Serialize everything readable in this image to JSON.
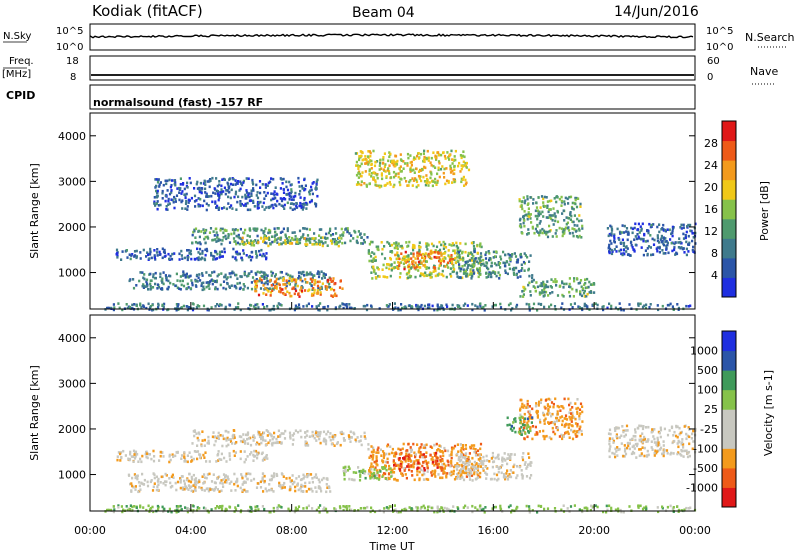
{
  "header": {
    "site": "Kodiak (fitACF)",
    "beam": "Beam 04",
    "date": "14/Jun/2016"
  },
  "summary": {
    "nsky_label": "N.Sky",
    "nsky_ticks": [
      "10^5",
      "10^0"
    ],
    "nsearch_label": "N.Search",
    "nsearch_ticks": [
      "10^5",
      "10^0"
    ],
    "freq_label": "Freq.",
    "freq_unit": "[MHz]",
    "freq_ticks": [
      "18",
      "8"
    ],
    "nave_label": "Nave",
    "nave_ticks": [
      "60",
      "0"
    ],
    "cpid_label": "CPID",
    "cpid_text": "normalsound (fast) -157 RF"
  },
  "colors": {
    "power_scale": [
      "#1f2fe0",
      "#2b55a8",
      "#3f7a8c",
      "#4f9a6e",
      "#86c24a",
      "#f0c818",
      "#f39a1c",
      "#ee5a18",
      "#e01818"
    ],
    "velocity_scale": [
      "#e01818",
      "#ee5a18",
      "#f39a1c",
      "#c8c8c0",
      "#c8c8c0",
      "#86c24a",
      "#3f9a5a",
      "#2b55a8",
      "#1f2fe0"
    ],
    "ground_scatter": "#c8c8c0"
  },
  "chart_data": [
    {
      "type": "heatmap",
      "title": "",
      "xlabel": "",
      "ylabel": "Slant Range [km]",
      "xlim": [
        "00:00",
        "24:00"
      ],
      "ylim": [
        200,
        4500
      ],
      "ytick_labels": [
        "1000",
        "2000",
        "3000",
        "4000"
      ],
      "ytick_values": [
        1000,
        2000,
        3000,
        4000
      ],
      "colorbar": {
        "label": "Power [dB]",
        "range": [
          0,
          32
        ],
        "tick_labels": [
          "4",
          "8",
          "12",
          "16",
          "20",
          "24",
          "28"
        ],
        "tick_values": [
          4,
          8,
          12,
          16,
          20,
          24,
          28
        ]
      },
      "bands": [
        {
          "t": [
            1.0,
            7.0
          ],
          "r": [
            1300,
            1550
          ],
          "level": 6
        },
        {
          "t": [
            4.0,
            11.0
          ],
          "r": [
            1650,
            2000
          ],
          "level": 11
        },
        {
          "t": [
            6.0,
            10.0
          ],
          "r": [
            1600,
            1800
          ],
          "level": 17
        },
        {
          "t": [
            1.5,
            9.5
          ],
          "r": [
            650,
            1050
          ],
          "level": 9
        },
        {
          "t": [
            6.5,
            10.0
          ],
          "r": [
            500,
            900
          ],
          "level": 24
        },
        {
          "t": [
            11.0,
            15.5
          ],
          "r": [
            900,
            1700
          ],
          "level": 16
        },
        {
          "t": [
            12.0,
            14.5
          ],
          "r": [
            1100,
            1500
          ],
          "level": 24
        },
        {
          "t": [
            14.5,
            17.5
          ],
          "r": [
            900,
            1500
          ],
          "level": 10
        },
        {
          "t": [
            17.0,
            20.0
          ],
          "r": [
            500,
            900
          ],
          "level": 13
        },
        {
          "t": [
            17.0,
            19.5
          ],
          "r": [
            1800,
            2700
          ],
          "level": 13
        },
        {
          "t": [
            20.5,
            24.0
          ],
          "r": [
            1400,
            2100
          ],
          "level": 6
        },
        {
          "t": [
            10.5,
            15.0
          ],
          "r": [
            2900,
            3700
          ],
          "level": 19
        },
        {
          "t": [
            2.5,
            9.0
          ],
          "r": [
            2400,
            3100
          ],
          "level": 6
        },
        {
          "t": [
            0.5,
            24.0
          ],
          "r": [
            200,
            350
          ],
          "level": 8
        }
      ]
    },
    {
      "type": "heatmap",
      "title": "",
      "xlabel": "Time UT",
      "ylabel": "Slant Range [km]",
      "xlim": [
        "00:00",
        "24:00"
      ],
      "ylim": [
        200,
        4500
      ],
      "xtick_labels": [
        "00:00",
        "04:00",
        "08:00",
        "12:00",
        "16:00",
        "20:00",
        "00:00"
      ],
      "ytick_labels": [
        "1000",
        "2000",
        "3000",
        "4000"
      ],
      "ytick_values": [
        1000,
        2000,
        3000,
        4000
      ],
      "colorbar": {
        "label": "Velocity [m s-1]",
        "range": [
          -1500,
          1500
        ],
        "tick_labels": [
          "1000",
          "500",
          "100",
          "25",
          "-25",
          "-100",
          "-500",
          "-1000"
        ]
      },
      "bands": [
        {
          "t": [
            1.0,
            7.0
          ],
          "r": [
            1300,
            1550
          ],
          "cls": 3
        },
        {
          "t": [
            4.0,
            11.0
          ],
          "r": [
            1650,
            2000
          ],
          "cls": 3
        },
        {
          "t": [
            1.5,
            9.5
          ],
          "r": [
            650,
            1050
          ],
          "cls": 3
        },
        {
          "t": [
            11.0,
            15.5
          ],
          "r": [
            900,
            1700
          ],
          "cls": 2
        },
        {
          "t": [
            12.0,
            14.0
          ],
          "r": [
            1100,
            1500
          ],
          "cls": 1
        },
        {
          "t": [
            10.0,
            12.0
          ],
          "r": [
            900,
            1200
          ],
          "cls": 5
        },
        {
          "t": [
            14.5,
            17.5
          ],
          "r": [
            900,
            1500
          ],
          "cls": 3
        },
        {
          "t": [
            17.0,
            19.5
          ],
          "r": [
            1800,
            2700
          ],
          "cls": 2
        },
        {
          "t": [
            16.5,
            17.5
          ],
          "r": [
            1900,
            2300
          ],
          "cls": 6
        },
        {
          "t": [
            20.5,
            24.0
          ],
          "r": [
            1400,
            2100
          ],
          "cls": 3
        },
        {
          "t": [
            0.5,
            24.0
          ],
          "r": [
            200,
            350
          ],
          "cls": 5
        }
      ]
    }
  ]
}
